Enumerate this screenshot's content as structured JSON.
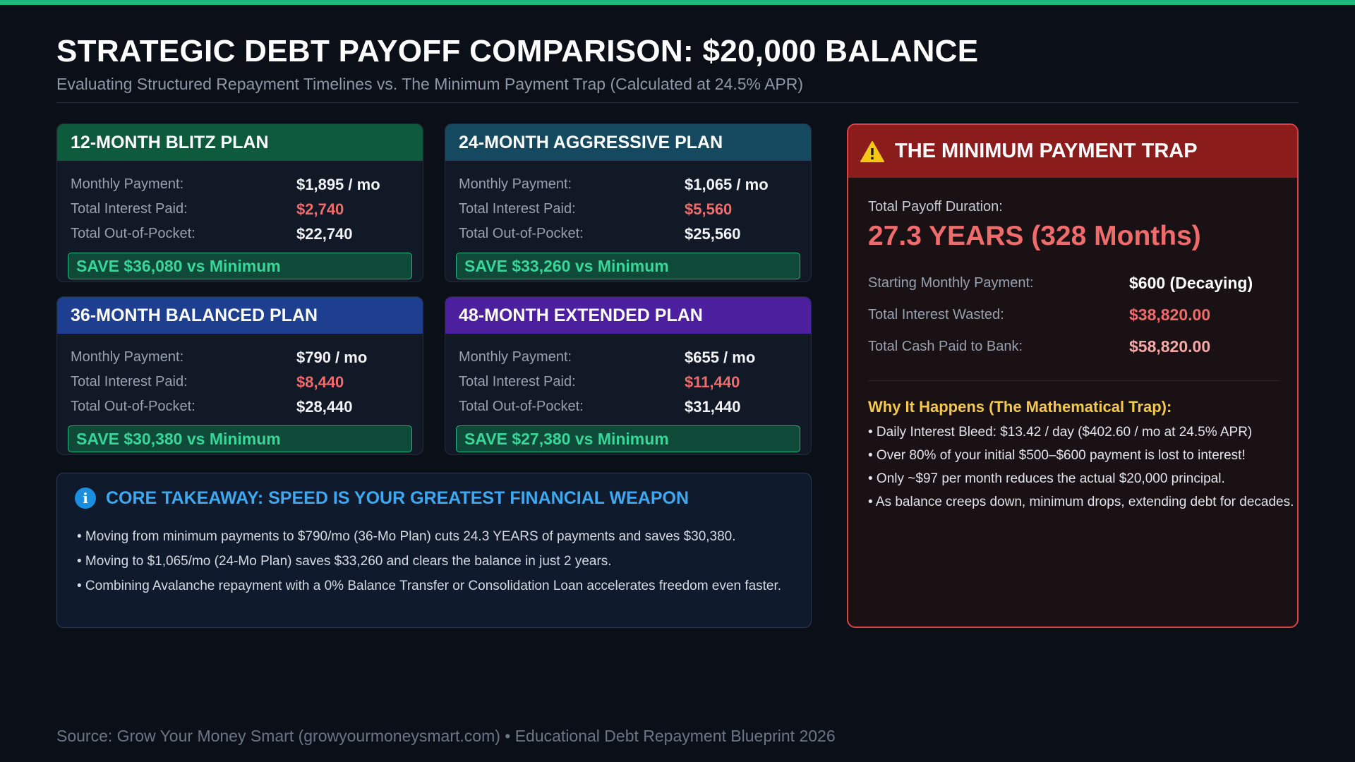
{
  "header": {
    "title": "STRATEGIC DEBT PAYOFF COMPARISON: $20,000 BALANCE",
    "subtitle": "Evaluating Structured Repayment Timelines vs. The Minimum Payment Trap (Calculated at 24.5% APR)"
  },
  "labels": {
    "monthly_payment": "Monthly Payment:",
    "total_interest": "Total Interest Paid:",
    "total_out_of_pocket": "Total Out-of-Pocket:"
  },
  "plans": [
    {
      "title": "12-MONTH BLITZ PLAN",
      "monthly": "$1,895 / mo",
      "interest": "$2,740",
      "total": "$22,740",
      "save": "SAVE $36,080 vs Minimum",
      "color": "#0d5a3c"
    },
    {
      "title": "24-MONTH AGGRESSIVE PLAN",
      "monthly": "$1,065 / mo",
      "interest": "$5,560",
      "total": "$25,560",
      "save": "SAVE $33,260 vs Minimum",
      "color": "#15495f"
    },
    {
      "title": "36-MONTH BALANCED PLAN",
      "monthly": "$790 / mo",
      "interest": "$8,440",
      "total": "$28,440",
      "save": "SAVE $30,380 vs Minimum",
      "color": "#1e3f8f"
    },
    {
      "title": "48-MONTH EXTENDED PLAN",
      "monthly": "$655 / mo",
      "interest": "$11,440",
      "total": "$31,440",
      "save": "SAVE $27,380 vs Minimum",
      "color": "#4c1f9e"
    }
  ],
  "takeaway": {
    "icon": "info-icon",
    "title": "CORE TAKEAWAY: SPEED IS YOUR GREATEST FINANCIAL WEAPON",
    "items": [
      "• Moving from minimum payments to $790/mo (36-Mo Plan) cuts 24.3 YEARS of payments and saves $30,380.",
      "• Moving to $1,065/mo (24-Mo Plan) saves $33,260 and clears the balance in just 2 years.",
      "• Combining Avalanche repayment with a 0% Balance Transfer or Consolidation Loan accelerates freedom even faster."
    ]
  },
  "trap": {
    "icon": "warning-icon",
    "title": "THE MINIMUM PAYMENT TRAP",
    "duration_label": "Total Payoff Duration:",
    "duration_value": "27.3 YEARS (328 Months)",
    "rows": [
      {
        "label": "Starting Monthly Payment:",
        "value": "$600 (Decaying)"
      },
      {
        "label": "Total Interest Wasted:",
        "value": "$38,820.00"
      },
      {
        "label": "Total Cash Paid to Bank:",
        "value": "$58,820.00"
      }
    ],
    "why_title": "Why It Happens (The Mathematical Trap):",
    "why_items": [
      "• Daily Interest Bleed: $13.42 / day ($402.60 / mo at 24.5% APR)",
      "• Over 80% of your initial $500–$600 payment is lost to interest!",
      "• Only ~$97 per month reduces the actual $20,000 principal.",
      "• As balance creeps down, minimum drops, extending debt for decades."
    ]
  },
  "footer": {
    "source": "Source: Grow Your Money Smart (growyourmoneysmart.com) • Educational Debt Repayment Blueprint 2026"
  }
}
